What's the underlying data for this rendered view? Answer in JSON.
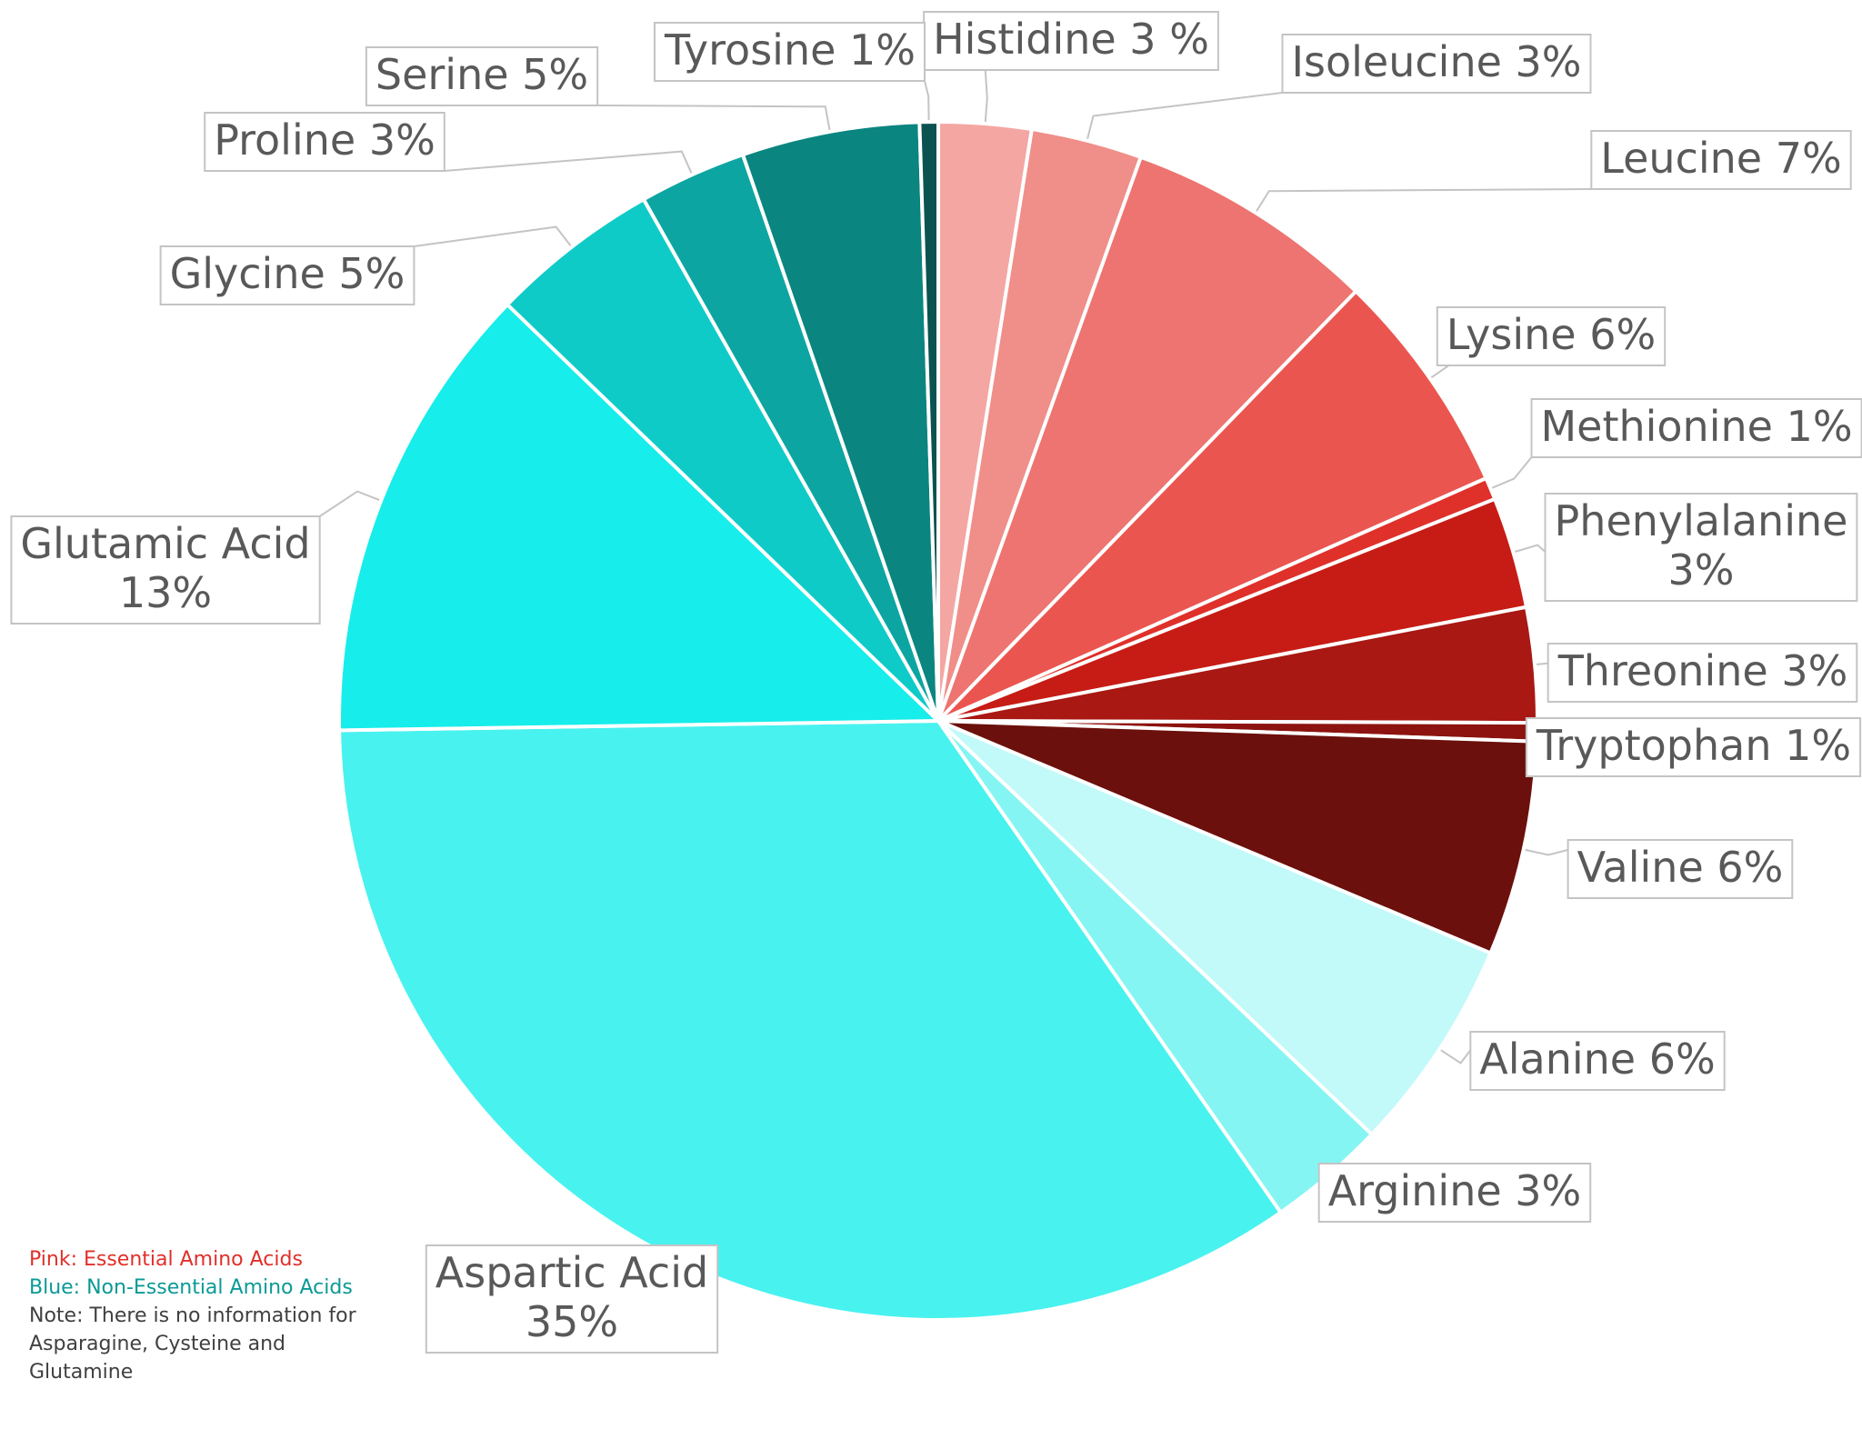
{
  "chart_data": {
    "type": "pie",
    "start_angle_deg": 0,
    "direction": "clockwise",
    "slices": [
      {
        "name": "Histidine",
        "label": "Histidine 3 %",
        "value": 2.5,
        "color": "#f4a6a3"
      },
      {
        "name": "Isoleucine",
        "label": "Isoleucine 3%",
        "value": 3.0,
        "color": "#f08e89"
      },
      {
        "name": "Leucine",
        "label": "Leucine 7%",
        "value": 6.8,
        "color": "#ed7470"
      },
      {
        "name": "Lysine",
        "label": "Lysine 6%",
        "value": 6.1,
        "color": "#eb5550"
      },
      {
        "name": "Methionine",
        "label": "Methionine 1%",
        "value": 0.6,
        "color": "#e0302a"
      },
      {
        "name": "Phenylalanine",
        "label": "Phenylalanine 3%",
        "value": 3.0,
        "color": "#c71c15"
      },
      {
        "name": "Threonine",
        "label": "Threonine 3%",
        "value": 3.1,
        "color": "#a91813"
      },
      {
        "name": "Tryptophan",
        "label": "Tryptophan 1%",
        "value": 0.5,
        "color": "#8c130f"
      },
      {
        "name": "Valine",
        "label": "Valine 6%",
        "value": 5.8,
        "color": "#6b100c"
      },
      {
        "name": "Alanine",
        "label": "Alanine 6%",
        "value": 5.8,
        "color": "#c2f9f9"
      },
      {
        "name": "Arginine",
        "label": "Arginine 3%",
        "value": 3.2,
        "color": "#85f5f3"
      },
      {
        "name": "Aspartic Acid",
        "label": "Aspartic Acid 35%",
        "value": 34.5,
        "color": "#48f2ef"
      },
      {
        "name": "Glutamic Acid",
        "label": "Glutamic Acid 13%",
        "value": 12.5,
        "color": "#17edea"
      },
      {
        "name": "Glycine",
        "label": "Glycine 5%",
        "value": 4.6,
        "color": "#0fcbc8"
      },
      {
        "name": "Proline",
        "label": "Proline 3%",
        "value": 2.9,
        "color": "#0da5a2"
      },
      {
        "name": "Serine",
        "label": "Serine 5%",
        "value": 4.8,
        "color": "#0b857f"
      },
      {
        "name": "Tyrosine",
        "label": "Tyrosine 1%",
        "value": 0.5,
        "color": "#0b5350"
      }
    ],
    "title": "",
    "legend": "none",
    "notes": [
      {
        "text": "Pink: Essential Amino Acids",
        "color": "#e0302a"
      },
      {
        "text": "Blue: Non-Essential Amino Acids",
        "color": "#0b9a96"
      },
      {
        "text": "Note: There is no information for Asparagine, Cysteine and Glutamine",
        "color": "#404040"
      }
    ]
  }
}
